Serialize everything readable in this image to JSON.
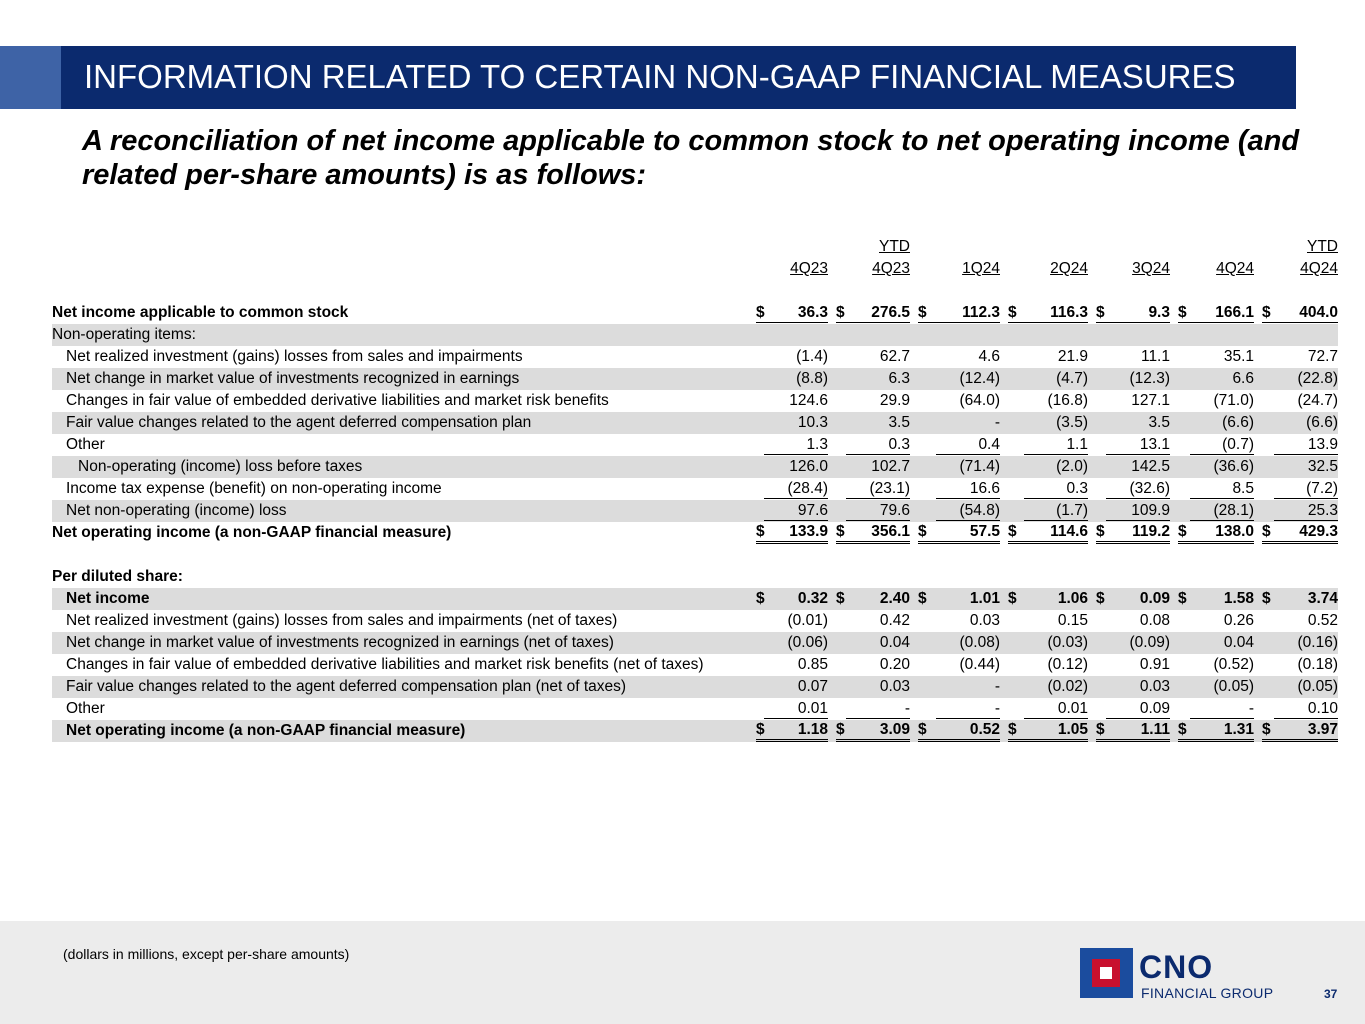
{
  "title": "INFORMATION RELATED TO CERTAIN NON-GAAP FINANCIAL MEASURES",
  "subtitle": "A reconciliation of net income applicable to common stock to net operating income (and related per-share amounts) is as follows:",
  "columns": [
    {
      "top": "",
      "label": "4Q23"
    },
    {
      "top": "YTD",
      "label": "4Q23"
    },
    {
      "top": "",
      "label": "1Q24"
    },
    {
      "top": "",
      "label": "2Q24"
    },
    {
      "top": "",
      "label": "3Q24"
    },
    {
      "top": "",
      "label": "4Q24"
    },
    {
      "top": "YTD",
      "label": "4Q24"
    }
  ],
  "net_income_row": {
    "label": "Net income applicable to common stock",
    "values": [
      "36.3",
      "276.5",
      "112.3",
      "116.3",
      "9.3",
      "166.1",
      "404.0"
    ]
  },
  "non_operating_header": "Non-operating items:",
  "non_operating_items": [
    {
      "label": "Net realized investment (gains) losses from sales and impairments",
      "values": [
        "(1.4)",
        "62.7",
        "4.6",
        "21.9",
        "11.1",
        "35.1",
        "72.7"
      ]
    },
    {
      "label": "Net change in market value of investments recognized in earnings",
      "values": [
        "(8.8)",
        "6.3",
        "(12.4)",
        "(4.7)",
        "(12.3)",
        "6.6",
        "(22.8)"
      ]
    },
    {
      "label": "Changes in fair value of embedded derivative liabilities and market risk benefits",
      "values": [
        "124.6",
        "29.9",
        "(64.0)",
        "(16.8)",
        "127.1",
        "(71.0)",
        "(24.7)"
      ]
    },
    {
      "label": "Fair value changes related to the agent deferred compensation plan",
      "values": [
        "10.3",
        "3.5",
        "-",
        "(3.5)",
        "3.5",
        "(6.6)",
        "(6.6)"
      ]
    },
    {
      "label": "Other",
      "values": [
        "1.3",
        "0.3",
        "0.4",
        "1.1",
        "13.1",
        "(0.7)",
        "13.9"
      ]
    }
  ],
  "pretax_row": {
    "label": "Non-operating (income) loss before taxes",
    "values": [
      "126.0",
      "102.7",
      "(71.4)",
      "(2.0)",
      "142.5",
      "(36.6)",
      "32.5"
    ]
  },
  "tax_row": {
    "label": "Income tax expense (benefit) on non-operating income",
    "values": [
      "(28.4)",
      "(23.1)",
      "16.6",
      "0.3",
      "(32.6)",
      "8.5",
      "(7.2)"
    ]
  },
  "net_nonop_row": {
    "label": "Net non-operating (income) loss",
    "values": [
      "97.6",
      "79.6",
      "(54.8)",
      "(1.7)",
      "109.9",
      "(28.1)",
      "25.3"
    ]
  },
  "net_operating_row": {
    "label": "Net operating income (a non-GAAP financial measure)",
    "values": [
      "133.9",
      "356.1",
      "57.5",
      "114.6",
      "119.2",
      "138.0",
      "429.3"
    ]
  },
  "per_share_header": "Per diluted share:",
  "per_share_net_income": {
    "label": "Net income",
    "values": [
      "0.32",
      "2.40",
      "1.01",
      "1.06",
      "0.09",
      "1.58",
      "3.74"
    ]
  },
  "per_share_items": [
    {
      "label": "Net realized investment (gains) losses from sales and impairments (net of taxes)",
      "values": [
        "(0.01)",
        "0.42",
        "0.03",
        "0.15",
        "0.08",
        "0.26",
        "0.52"
      ]
    },
    {
      "label": "Net change in market value of investments recognized in earnings (net of taxes)",
      "values": [
        "(0.06)",
        "0.04",
        "(0.08)",
        "(0.03)",
        "(0.09)",
        "0.04",
        "(0.16)"
      ]
    },
    {
      "label": "Changes in fair value of embedded derivative liabilities and market risk benefits (net of taxes)",
      "values": [
        "0.85",
        "0.20",
        "(0.44)",
        "(0.12)",
        "0.91",
        "(0.52)",
        "(0.18)"
      ]
    },
    {
      "label": "Fair value changes related to the agent deferred compensation plan (net of taxes)",
      "values": [
        "0.07",
        "0.03",
        "-",
        "(0.02)",
        "0.03",
        "(0.05)",
        "(0.05)"
      ]
    },
    {
      "label": "Other",
      "values": [
        "0.01",
        "-",
        "-",
        "0.01",
        "0.09",
        "-",
        "0.10"
      ]
    }
  ],
  "per_share_net_operating": {
    "label": "Net operating income (a non-GAAP financial measure)",
    "values": [
      "1.18",
      "3.09",
      "0.52",
      "1.05",
      "1.11",
      "1.31",
      "3.97"
    ]
  },
  "currency_symbol": "$",
  "footnote": "(dollars in millions, except per-share amounts)",
  "logo": {
    "name": "CNO",
    "sub": "FINANCIAL GROUP"
  },
  "page_number": "37",
  "colors": {
    "navy": "#0b2a6e",
    "accent_blue": "#3e63a6",
    "logo_red": "#c8102e",
    "shade": "#dcdcdc"
  }
}
